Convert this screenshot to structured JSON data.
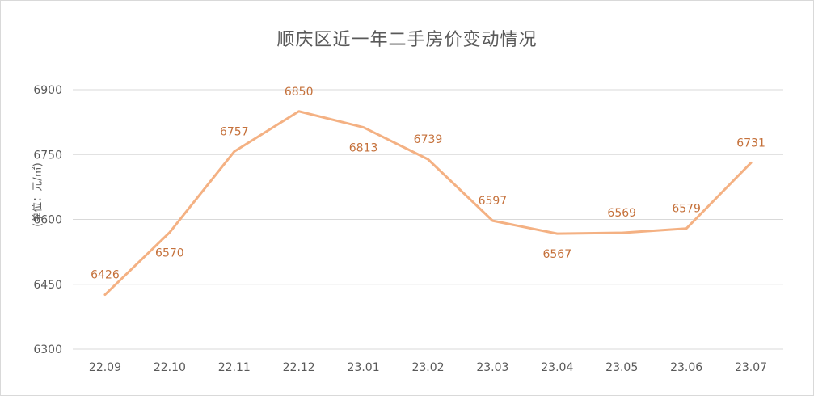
{
  "chart_data": {
    "type": "line",
    "title": "顺庆区近一年二手房价变动情况",
    "ylabel": "(单位：元/㎡)",
    "xlabel": "",
    "categories": [
      "22.09",
      "22.10",
      "22.11",
      "22.12",
      "23.01",
      "23.02",
      "23.03",
      "23.04",
      "23.05",
      "23.06",
      "23.07"
    ],
    "series": [
      {
        "values": [
          6426,
          6570,
          6757,
          6850,
          6813,
          6739,
          6597,
          6567,
          6569,
          6579,
          6731
        ]
      }
    ],
    "ylim": [
      6300,
      6900
    ],
    "yticks": [
      6300,
      6450,
      6600,
      6750,
      6900
    ],
    "label_positions": [
      "above",
      "below",
      "above",
      "above",
      "below",
      "above",
      "above",
      "below",
      "above",
      "above",
      "above"
    ],
    "grid": true,
    "legend": "none",
    "colors": {
      "line": "#f4b183",
      "label": "#c5713b",
      "grid": "#d9d9d9",
      "text": "#595959"
    }
  }
}
